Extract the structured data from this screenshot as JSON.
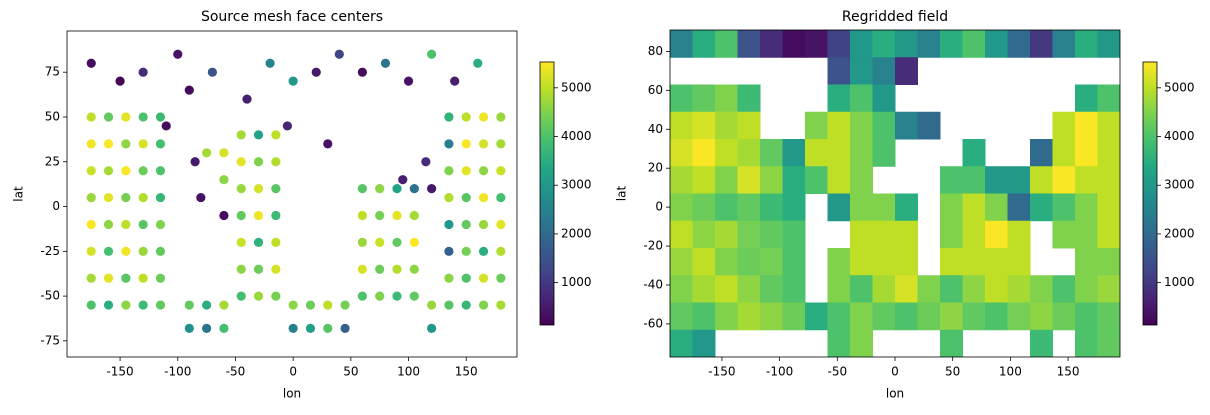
{
  "chart_data": [
    {
      "type": "scatter",
      "title": "Source mesh face centers",
      "xlabel": "lon",
      "ylabel": "lat",
      "colormap": "viridis",
      "xlim": [
        -196,
        194
      ],
      "ylim": [
        -84,
        98
      ],
      "xticks": [
        -150,
        -100,
        -50,
        0,
        50,
        100,
        150
      ],
      "yticks": [
        -75,
        -50,
        -25,
        0,
        25,
        50,
        75
      ],
      "clim": [
        130,
        5530
      ],
      "cticks": [
        1000,
        2000,
        3000,
        4000,
        5000
      ],
      "x": [
        -175,
        -160,
        -145,
        -130,
        -115,
        -175,
        -160,
        -145,
        -130,
        -115,
        -175,
        -160,
        -145,
        -130,
        -115,
        -175,
        -160,
        -145,
        -130,
        -115,
        -175,
        -160,
        -145,
        -130,
        -115,
        -175,
        -160,
        -145,
        -130,
        -115,
        -175,
        -160,
        -145,
        -130,
        -115,
        -175,
        -160,
        -145,
        -130,
        -115,
        -45,
        -30,
        -15,
        -45,
        -30,
        -15,
        -45,
        -30,
        -15,
        -45,
        -30,
        -15,
        -45,
        -30,
        -15,
        -45,
        -30,
        -15,
        -45,
        -30,
        -15,
        -60,
        -60,
        -75,
        60,
        75,
        90,
        105,
        60,
        75,
        90,
        105,
        60,
        75,
        90,
        105,
        60,
        75,
        90,
        105,
        60,
        75,
        90,
        105,
        135,
        150,
        165,
        180,
        135,
        150,
        165,
        180,
        135,
        150,
        165,
        180,
        135,
        150,
        165,
        180,
        135,
        150,
        165,
        180,
        135,
        150,
        165,
        180,
        135,
        150,
        165,
        180,
        135,
        150,
        165,
        180,
        -90,
        -75,
        -60,
        0,
        15,
        30,
        45,
        120,
        -90,
        -75,
        -60,
        0,
        15,
        30,
        45,
        120,
        -175,
        -150,
        -130,
        -100,
        -90,
        -70,
        -40,
        -20,
        0,
        20,
        40,
        60,
        80,
        100,
        120,
        140,
        160,
        -110,
        -85,
        -5,
        30,
        95,
        120,
        115,
        -80,
        -60
      ],
      "y": [
        50,
        50,
        50,
        50,
        50,
        35,
        35,
        35,
        35,
        35,
        20,
        20,
        20,
        20,
        20,
        5,
        5,
        5,
        5,
        5,
        -10,
        -10,
        -10,
        -10,
        -10,
        -25,
        -25,
        -25,
        -25,
        -25,
        -40,
        -40,
        -40,
        -40,
        -40,
        -55,
        -55,
        -55,
        -55,
        -55,
        40,
        40,
        40,
        25,
        25,
        25,
        10,
        10,
        10,
        -5,
        -5,
        -5,
        -20,
        -20,
        -20,
        -35,
        -35,
        -35,
        -50,
        -50,
        -50,
        30,
        15,
        30,
        10,
        10,
        10,
        10,
        -5,
        -5,
        -5,
        -5,
        -20,
        -20,
        -20,
        -20,
        -35,
        -35,
        -35,
        -35,
        -50,
        -50,
        -50,
        -50,
        50,
        50,
        50,
        50,
        35,
        35,
        35,
        35,
        20,
        20,
        20,
        20,
        5,
        5,
        5,
        5,
        -10,
        -10,
        -10,
        -10,
        -25,
        -25,
        -25,
        -25,
        -40,
        -40,
        -40,
        -40,
        -55,
        -55,
        -55,
        -55,
        -55,
        -55,
        -55,
        -55,
        -55,
        -55,
        -55,
        -55,
        -68,
        -68,
        -68,
        -68,
        -68,
        -68,
        -68,
        -68,
        80,
        70,
        75,
        85,
        65,
        75,
        60,
        80,
        70,
        75,
        85,
        75,
        80,
        70,
        85,
        70,
        80,
        45,
        25,
        45,
        35,
        15,
        10,
        25,
        5,
        -5
      ],
      "values": [
        5000,
        4200,
        5300,
        4000,
        3800,
        5400,
        5500,
        4600,
        5200,
        3900,
        5100,
        4800,
        5500,
        4300,
        4000,
        4700,
        5300,
        4400,
        4900,
        3700,
        5500,
        4600,
        5000,
        4100,
        4500,
        5200,
        3900,
        5400,
        4700,
        4200,
        4800,
        5300,
        4100,
        5000,
        4300,
        4000,
        3500,
        4600,
        3800,
        4200,
        4800,
        3200,
        5000,
        5300,
        4500,
        4900,
        4700,
        5200,
        4100,
        4200,
        5400,
        3800,
        5100,
        3600,
        5000,
        4600,
        4300,
        5200,
        3900,
        4700,
        4400,
        5200,
        4600,
        4800,
        4100,
        4600,
        3300,
        2200,
        5000,
        4400,
        5300,
        4800,
        4700,
        5100,
        4200,
        5500,
        5200,
        4300,
        4900,
        4600,
        4000,
        4500,
        3800,
        4200,
        3600,
        5000,
        5400,
        4700,
        2400,
        5500,
        5200,
        4800,
        4500,
        5300,
        4600,
        5100,
        4900,
        4100,
        5400,
        3900,
        3000,
        4200,
        4700,
        5300,
        1800,
        4400,
        3500,
        4900,
        4600,
        4000,
        5200,
        4300,
        4100,
        3700,
        4500,
        4800,
        4200,
        3500,
        4800,
        4600,
        4300,
        5000,
        4400,
        4700,
        2800,
        2200,
        3900,
        2500,
        3200,
        4100,
        1800,
        3000,
        300,
        200,
        800,
        400,
        300,
        1500,
        600,
        2500,
        3000,
        500,
        1200,
        300,
        2200,
        400,
        4000,
        600,
        3500,
        300,
        500,
        700,
        400,
        600,
        500,
        800,
        400,
        300
      ]
    },
    {
      "type": "heatmap",
      "title": "Regridded field",
      "xlabel": "lon",
      "ylabel": "lat",
      "colormap": "viridis",
      "xlim": [
        -195,
        195
      ],
      "ylim": [
        -77,
        91
      ],
      "xticks": [
        -150,
        -100,
        -50,
        0,
        50,
        100,
        150
      ],
      "yticks": [
        -60,
        -40,
        -20,
        0,
        20,
        40,
        60,
        80
      ],
      "clim": [
        130,
        5530
      ],
      "cticks": [
        1000,
        2000,
        3000,
        4000,
        5000
      ],
      "x_edges": [
        -195,
        -175.5,
        -156,
        -136.5,
        -117,
        -97.5,
        -78,
        -58.5,
        -39,
        -19.5,
        0,
        19.5,
        39,
        58.5,
        78,
        97.5,
        117,
        136.5,
        156,
        175.5,
        195
      ],
      "y_edges": [
        91,
        77,
        63,
        49,
        35,
        21,
        7,
        -7,
        -21,
        -35,
        -49,
        -63,
        -77
      ],
      "values": [
        [
          2500,
          3500,
          4000,
          1500,
          800,
          300,
          400,
          1200,
          3000,
          3500,
          3000,
          2500,
          3500,
          4000,
          3000,
          2000,
          1000,
          2500,
          3500,
          3000
        ],
        [
          null,
          null,
          null,
          null,
          null,
          null,
          null,
          1500,
          3000,
          2500,
          800,
          null,
          null,
          null,
          null,
          null,
          null,
          null,
          null,
          null
        ],
        [
          4000,
          4200,
          4500,
          3800,
          null,
          null,
          null,
          3500,
          4000,
          3000,
          null,
          null,
          null,
          null,
          null,
          null,
          null,
          null,
          3500,
          4000
        ],
        [
          5000,
          5200,
          4800,
          5000,
          null,
          null,
          4500,
          5000,
          4500,
          4000,
          2500,
          2000,
          null,
          null,
          null,
          null,
          null,
          5000,
          5500,
          5000
        ],
        [
          5200,
          5500,
          5000,
          4800,
          4200,
          3000,
          5000,
          5000,
          4500,
          4000,
          null,
          null,
          null,
          3500,
          null,
          null,
          2000,
          5000,
          5500,
          5000
        ],
        [
          4800,
          5000,
          4500,
          5200,
          4600,
          3500,
          4000,
          5000,
          4500,
          null,
          null,
          null,
          4000,
          4000,
          3000,
          3000,
          5000,
          5500,
          5000,
          5000
        ],
        [
          4500,
          4300,
          4000,
          4200,
          3800,
          3500,
          null,
          3000,
          4500,
          4500,
          3500,
          null,
          4500,
          5000,
          4500,
          2000,
          3500,
          4000,
          4500,
          5000
        ],
        [
          5000,
          4600,
          4800,
          4400,
          4200,
          4000,
          null,
          null,
          5000,
          5000,
          5000,
          null,
          4500,
          5000,
          5500,
          5000,
          null,
          4500,
          4500,
          5000
        ],
        [
          4700,
          5000,
          4500,
          4300,
          4400,
          4000,
          null,
          4500,
          5000,
          5000,
          5000,
          null,
          5000,
          5000,
          5000,
          5000,
          null,
          null,
          4500,
          4500
        ],
        [
          4500,
          4800,
          5000,
          4600,
          4200,
          4000,
          null,
          4500,
          4000,
          4800,
          5200,
          4500,
          4000,
          4600,
          5000,
          4800,
          4500,
          4000,
          4500,
          4700
        ],
        [
          4200,
          4000,
          4500,
          4800,
          4600,
          4300,
          3500,
          4000,
          4500,
          4200,
          4000,
          4300,
          4600,
          4200,
          4000,
          4400,
          4600,
          4300,
          4000,
          4200
        ],
        [
          3500,
          3000,
          null,
          null,
          null,
          null,
          null,
          4000,
          4500,
          null,
          null,
          null,
          4000,
          null,
          null,
          null,
          3800,
          null,
          4000,
          4200
        ]
      ]
    }
  ]
}
